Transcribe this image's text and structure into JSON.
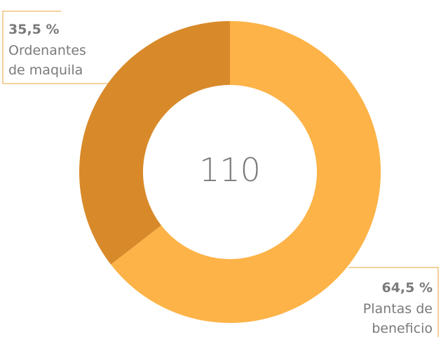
{
  "chart_data": {
    "type": "pie",
    "variant": "donut",
    "center_label": "110",
    "slices": [
      {
        "name_lines": [
          "Plantas de",
          "beneficio"
        ],
        "percent_label": "64,5 %",
        "value": 64.5,
        "color": "#FDB347"
      },
      {
        "name_lines": [
          "Ordenantes",
          "de maquila"
        ],
        "percent_label": "35,5 %",
        "value": 35.5,
        "color": "#D88A2A"
      }
    ],
    "leader_color": "#E8A33D",
    "legend": "none"
  }
}
